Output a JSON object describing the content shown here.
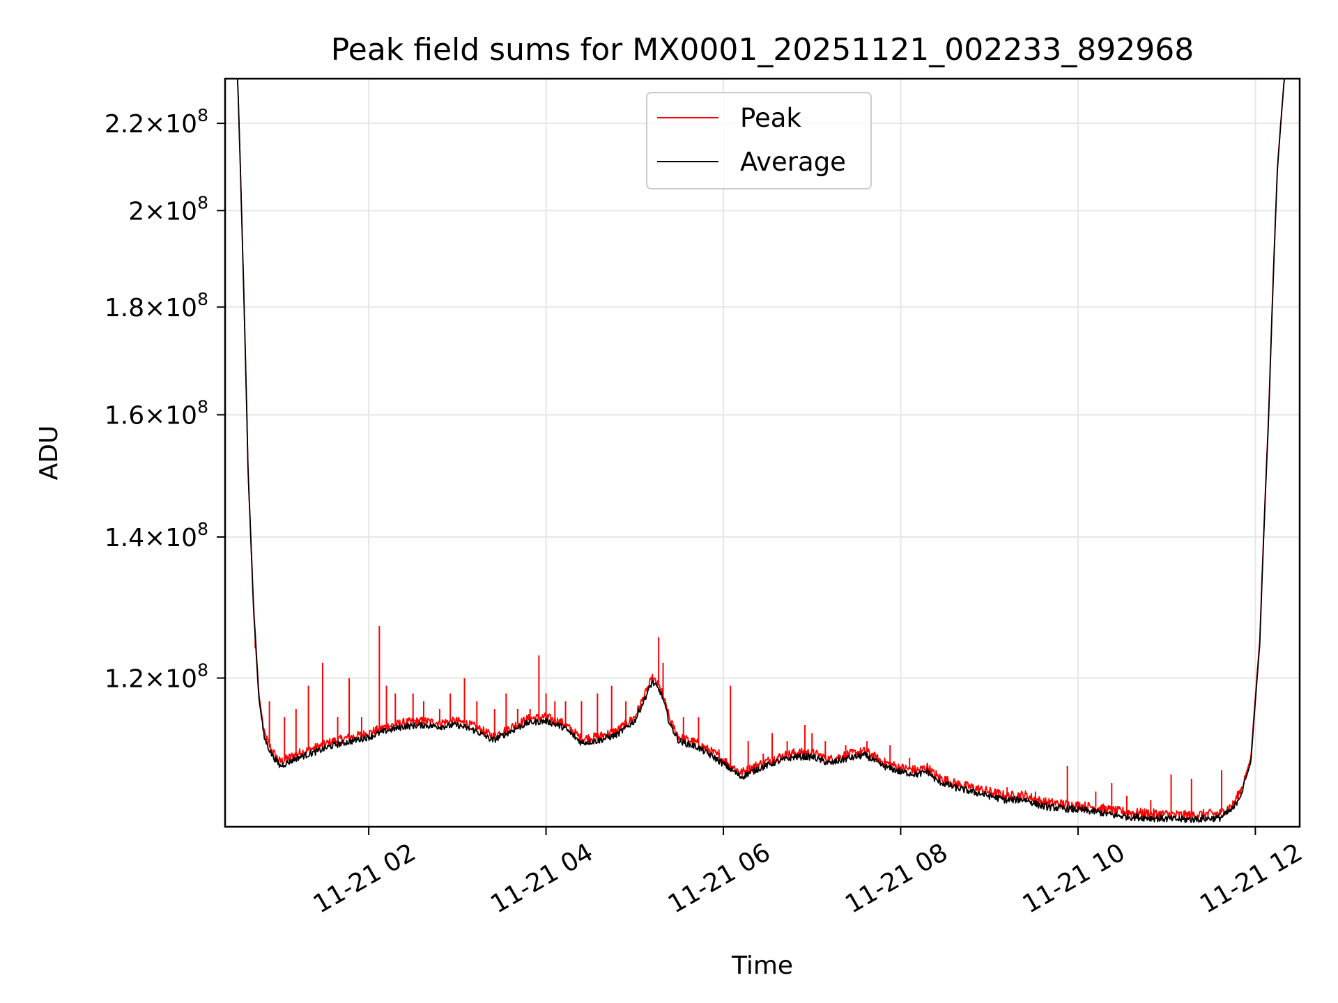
{
  "chart_data": {
    "type": "line",
    "title": "Peak field sums for MX0001_20251121_002233_892968",
    "xlabel": "Time",
    "ylabel": "ADU",
    "x_unit": "hours",
    "xlim": [
      0.38,
      12.5
    ],
    "ylim": [
      102000000,
      231000000
    ],
    "y_scale": "log",
    "grid": true,
    "legend_position": "upper center",
    "x_ticks": [
      {
        "value": 2,
        "label": "11-21 02"
      },
      {
        "value": 4,
        "label": "11-21 04"
      },
      {
        "value": 6,
        "label": "11-21 06"
      },
      {
        "value": 8,
        "label": "11-21 08"
      },
      {
        "value": 10,
        "label": "11-21 10"
      },
      {
        "value": 12,
        "label": "11-21 12"
      }
    ],
    "y_ticks": [
      {
        "value": 120000000,
        "mantissa": "1.2",
        "exp": "8"
      },
      {
        "value": 140000000,
        "mantissa": "1.4",
        "exp": "8"
      },
      {
        "value": 160000000,
        "mantissa": "1.6",
        "exp": "8"
      },
      {
        "value": 180000000,
        "mantissa": "1.8",
        "exp": "8"
      },
      {
        "value": 200000000,
        "mantissa": "2",
        "exp": "8"
      },
      {
        "value": 220000000,
        "mantissa": "2.2",
        "exp": "8"
      }
    ],
    "tick_times": "×10",
    "series": [
      {
        "name": "Peak",
        "color": "#ff0000",
        "points": [
          [
            0.52,
            232000000
          ],
          [
            0.58,
            190000000
          ],
          [
            0.64,
            150000000
          ],
          [
            0.7,
            130000000
          ],
          [
            0.76,
            118000000
          ],
          [
            0.82,
            113000000
          ],
          [
            0.9,
            111000000
          ],
          [
            1.0,
            109500000
          ],
          [
            1.2,
            110500000
          ],
          [
            1.4,
            111200000
          ],
          [
            1.6,
            112000000
          ],
          [
            1.8,
            112500000
          ],
          [
            2.0,
            113000000
          ],
          [
            2.2,
            113800000
          ],
          [
            2.4,
            114300000
          ],
          [
            2.6,
            114500000
          ],
          [
            2.8,
            114300000
          ],
          [
            3.0,
            114500000
          ],
          [
            3.2,
            113800000
          ],
          [
            3.4,
            112600000
          ],
          [
            3.6,
            113700000
          ],
          [
            3.8,
            114800000
          ],
          [
            4.0,
            115000000
          ],
          [
            4.2,
            114200000
          ],
          [
            4.4,
            112300000
          ],
          [
            4.6,
            112600000
          ],
          [
            4.8,
            113300000
          ],
          [
            5.0,
            115000000
          ],
          [
            5.1,
            117500000
          ],
          [
            5.2,
            120000000
          ],
          [
            5.3,
            118500000
          ],
          [
            5.4,
            114500000
          ],
          [
            5.5,
            112500000
          ],
          [
            5.7,
            111800000
          ],
          [
            5.9,
            110500000
          ],
          [
            6.1,
            109000000
          ],
          [
            6.2,
            108200000
          ],
          [
            6.4,
            109200000
          ],
          [
            6.6,
            110000000
          ],
          [
            6.8,
            110600000
          ],
          [
            7.0,
            110600000
          ],
          [
            7.2,
            109800000
          ],
          [
            7.4,
            110400000
          ],
          [
            7.6,
            110800000
          ],
          [
            7.8,
            109500000
          ],
          [
            8.0,
            108800000
          ],
          [
            8.2,
            108500000
          ],
          [
            8.3,
            108900000
          ],
          [
            8.4,
            107800000
          ],
          [
            8.6,
            107000000
          ],
          [
            8.8,
            106500000
          ],
          [
            9.0,
            106000000
          ],
          [
            9.2,
            105500000
          ],
          [
            9.4,
            105600000
          ],
          [
            9.6,
            104800000
          ],
          [
            9.8,
            104600000
          ],
          [
            10.0,
            104400000
          ],
          [
            10.2,
            104200000
          ],
          [
            10.4,
            103800000
          ],
          [
            10.6,
            103600000
          ],
          [
            10.8,
            103500000
          ],
          [
            11.0,
            103400000
          ],
          [
            11.2,
            103300000
          ],
          [
            11.4,
            103400000
          ],
          [
            11.6,
            103500000
          ],
          [
            11.75,
            104500000
          ],
          [
            11.85,
            106500000
          ],
          [
            11.95,
            110000000
          ],
          [
            12.05,
            125000000
          ],
          [
            12.15,
            160000000
          ],
          [
            12.25,
            210000000
          ],
          [
            12.33,
            232000000
          ]
        ],
        "spikes": [
          [
            0.72,
            124000000
          ],
          [
            0.88,
            117000000
          ],
          [
            1.05,
            115000000
          ],
          [
            1.18,
            116000000
          ],
          [
            1.32,
            119000000
          ],
          [
            1.48,
            122000000
          ],
          [
            1.65,
            115000000
          ],
          [
            1.78,
            120000000
          ],
          [
            1.92,
            115000000
          ],
          [
            2.12,
            127000000
          ],
          [
            2.2,
            119000000
          ],
          [
            2.3,
            118000000
          ],
          [
            2.5,
            118000000
          ],
          [
            2.62,
            117000000
          ],
          [
            2.8,
            116000000
          ],
          [
            2.92,
            118000000
          ],
          [
            3.08,
            120000000
          ],
          [
            3.22,
            117000000
          ],
          [
            3.42,
            116000000
          ],
          [
            3.55,
            118000000
          ],
          [
            3.68,
            116000000
          ],
          [
            3.82,
            116000000
          ],
          [
            3.92,
            123000000
          ],
          [
            4.0,
            118000000
          ],
          [
            4.1,
            117000000
          ],
          [
            4.22,
            117000000
          ],
          [
            4.4,
            117000000
          ],
          [
            4.58,
            118000000
          ],
          [
            4.74,
            119000000
          ],
          [
            4.9,
            117000000
          ],
          [
            5.27,
            125500000
          ],
          [
            5.32,
            122000000
          ],
          [
            5.55,
            115000000
          ],
          [
            5.72,
            115000000
          ],
          [
            5.95,
            111000000
          ],
          [
            6.08,
            119000000
          ],
          [
            6.28,
            112000000
          ],
          [
            6.45,
            110500000
          ],
          [
            6.55,
            113000000
          ],
          [
            6.72,
            112000000
          ],
          [
            6.92,
            114000000
          ],
          [
            7.0,
            113000000
          ],
          [
            7.15,
            112000000
          ],
          [
            7.38,
            111500000
          ],
          [
            7.62,
            112000000
          ],
          [
            7.88,
            111500000
          ],
          [
            8.1,
            110000000
          ],
          [
            8.4,
            108500000
          ],
          [
            9.2,
            106500000
          ],
          [
            9.52,
            106000000
          ],
          [
            9.88,
            109000000
          ],
          [
            10.2,
            106000000
          ],
          [
            10.38,
            107000000
          ],
          [
            10.55,
            105500000
          ],
          [
            10.82,
            105000000
          ],
          [
            11.05,
            108000000
          ],
          [
            11.28,
            107500000
          ],
          [
            11.62,
            108500000
          ]
        ]
      },
      {
        "name": "Average",
        "color": "#000000",
        "points": [
          [
            0.52,
            232000000
          ],
          [
            0.58,
            190000000
          ],
          [
            0.64,
            150000000
          ],
          [
            0.7,
            129500000
          ],
          [
            0.76,
            117500000
          ],
          [
            0.82,
            112500000
          ],
          [
            0.9,
            110500000
          ],
          [
            1.0,
            109000000
          ],
          [
            1.2,
            110000000
          ],
          [
            1.4,
            110700000
          ],
          [
            1.6,
            111500000
          ],
          [
            1.8,
            112000000
          ],
          [
            2.0,
            112500000
          ],
          [
            2.2,
            113300000
          ],
          [
            2.4,
            113800000
          ],
          [
            2.6,
            114000000
          ],
          [
            2.8,
            113800000
          ],
          [
            3.0,
            114000000
          ],
          [
            3.2,
            113300000
          ],
          [
            3.4,
            112100000
          ],
          [
            3.6,
            113200000
          ],
          [
            3.8,
            114300000
          ],
          [
            4.0,
            114500000
          ],
          [
            4.2,
            113700000
          ],
          [
            4.4,
            111800000
          ],
          [
            4.6,
            112100000
          ],
          [
            4.8,
            112800000
          ],
          [
            5.0,
            114500000
          ],
          [
            5.1,
            117000000
          ],
          [
            5.2,
            119500000
          ],
          [
            5.3,
            118000000
          ],
          [
            5.4,
            114000000
          ],
          [
            5.5,
            112000000
          ],
          [
            5.7,
            111300000
          ],
          [
            5.9,
            110000000
          ],
          [
            6.1,
            108500000
          ],
          [
            6.2,
            107700000
          ],
          [
            6.4,
            108700000
          ],
          [
            6.6,
            109500000
          ],
          [
            6.8,
            110100000
          ],
          [
            7.0,
            110100000
          ],
          [
            7.2,
            109300000
          ],
          [
            7.4,
            109900000
          ],
          [
            7.6,
            110300000
          ],
          [
            7.8,
            109000000
          ],
          [
            8.0,
            108300000
          ],
          [
            8.2,
            108000000
          ],
          [
            8.3,
            108400000
          ],
          [
            8.4,
            107300000
          ],
          [
            8.6,
            106500000
          ],
          [
            8.8,
            106000000
          ],
          [
            9.0,
            105500000
          ],
          [
            9.2,
            105000000
          ],
          [
            9.4,
            105100000
          ],
          [
            9.6,
            104300000
          ],
          [
            9.8,
            104100000
          ],
          [
            10.0,
            103900000
          ],
          [
            10.2,
            103700000
          ],
          [
            10.4,
            103300000
          ],
          [
            10.6,
            103100000
          ],
          [
            10.8,
            103000000
          ],
          [
            11.0,
            102900000
          ],
          [
            11.2,
            102800000
          ],
          [
            11.4,
            102900000
          ],
          [
            11.6,
            103000000
          ],
          [
            11.75,
            104000000
          ],
          [
            11.85,
            106000000
          ],
          [
            11.95,
            109500000
          ],
          [
            12.05,
            124500000
          ],
          [
            12.15,
            159500000
          ],
          [
            12.25,
            209500000
          ],
          [
            12.33,
            232000000
          ]
        ]
      }
    ]
  }
}
